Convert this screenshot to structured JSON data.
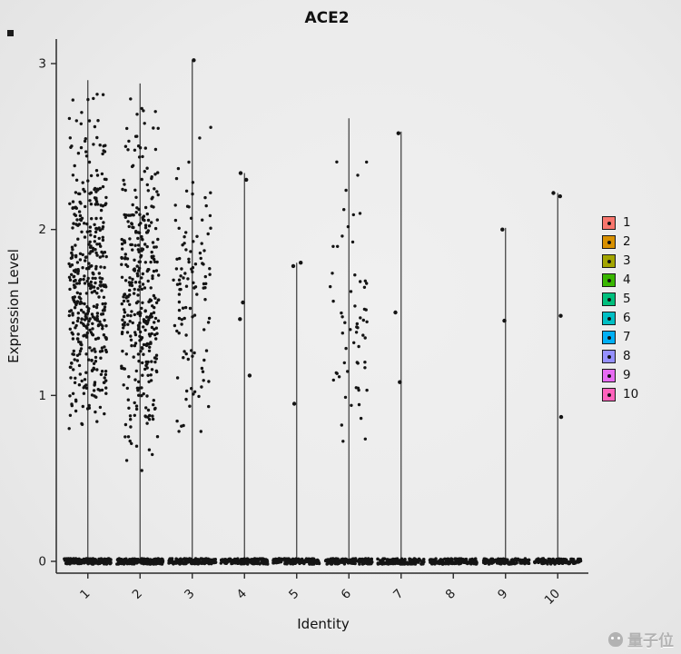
{
  "chart_data": {
    "type": "scatter",
    "title": "ACE2",
    "xlabel": "Identity",
    "ylabel": "Expression Level",
    "ylim": [
      0,
      3.1
    ],
    "yticks": [
      0,
      1,
      2,
      3
    ],
    "grid": false,
    "point_color": "#141414",
    "stem_color": "#3a3a3a",
    "categories": [
      "1",
      "2",
      "3",
      "4",
      "5",
      "6",
      "7",
      "8",
      "9",
      "10"
    ],
    "legend": {
      "position": "right",
      "entries": [
        {
          "label": "1",
          "color": "#F8766D"
        },
        {
          "label": "2",
          "color": "#D89000"
        },
        {
          "label": "3",
          "color": "#A3A500"
        },
        {
          "label": "4",
          "color": "#39B600"
        },
        {
          "label": "5",
          "color": "#00BF7D"
        },
        {
          "label": "6",
          "color": "#00BFC4"
        },
        {
          "label": "7",
          "color": "#00B0F6"
        },
        {
          "label": "8",
          "color": "#9590FF"
        },
        {
          "label": "9",
          "color": "#E76BF3"
        },
        {
          "label": "10",
          "color": "#FF62BC"
        }
      ]
    },
    "groups": [
      {
        "label": "1",
        "stem_top": 2.9,
        "zero_count": 170,
        "cloud": {
          "count": 430,
          "mean": 1.6,
          "sd": 0.48,
          "min": 0.78,
          "max": 2.92
        }
      },
      {
        "label": "2",
        "stem_top": 2.88,
        "zero_count": 170,
        "cloud": {
          "count": 360,
          "mean": 1.58,
          "sd": 0.5,
          "min": 0.5,
          "max": 2.87
        }
      },
      {
        "label": "3",
        "stem_top": 3.02,
        "zero_count": 150,
        "cloud": {
          "count": 115,
          "mean": 1.6,
          "sd": 0.42,
          "min": 0.75,
          "max": 2.62
        },
        "outliers": [
          3.02
        ]
      },
      {
        "label": "4",
        "stem_top": 2.34,
        "zero_count": 140,
        "points": [
          1.12,
          1.46,
          1.56,
          2.3,
          2.34
        ]
      },
      {
        "label": "5",
        "stem_top": 1.8,
        "zero_count": 135,
        "points": [
          0.95,
          1.78,
          1.8
        ]
      },
      {
        "label": "6",
        "stem_top": 2.67,
        "zero_count": 140,
        "cloud": {
          "count": 62,
          "mean": 1.45,
          "sd": 0.45,
          "min": 0.65,
          "max": 2.66
        }
      },
      {
        "label": "7",
        "stem_top": 2.59,
        "zero_count": 135,
        "points": [
          1.08,
          1.5,
          2.58
        ]
      },
      {
        "label": "8",
        "stem_top": 0,
        "zero_count": 135,
        "points": []
      },
      {
        "label": "9",
        "stem_top": 2.01,
        "zero_count": 130,
        "points": [
          1.45,
          2.0
        ]
      },
      {
        "label": "10",
        "stem_top": 2.22,
        "zero_count": 130,
        "points": [
          0.87,
          1.48,
          2.2,
          2.22
        ]
      }
    ]
  },
  "watermark": {
    "text": "量子位"
  }
}
